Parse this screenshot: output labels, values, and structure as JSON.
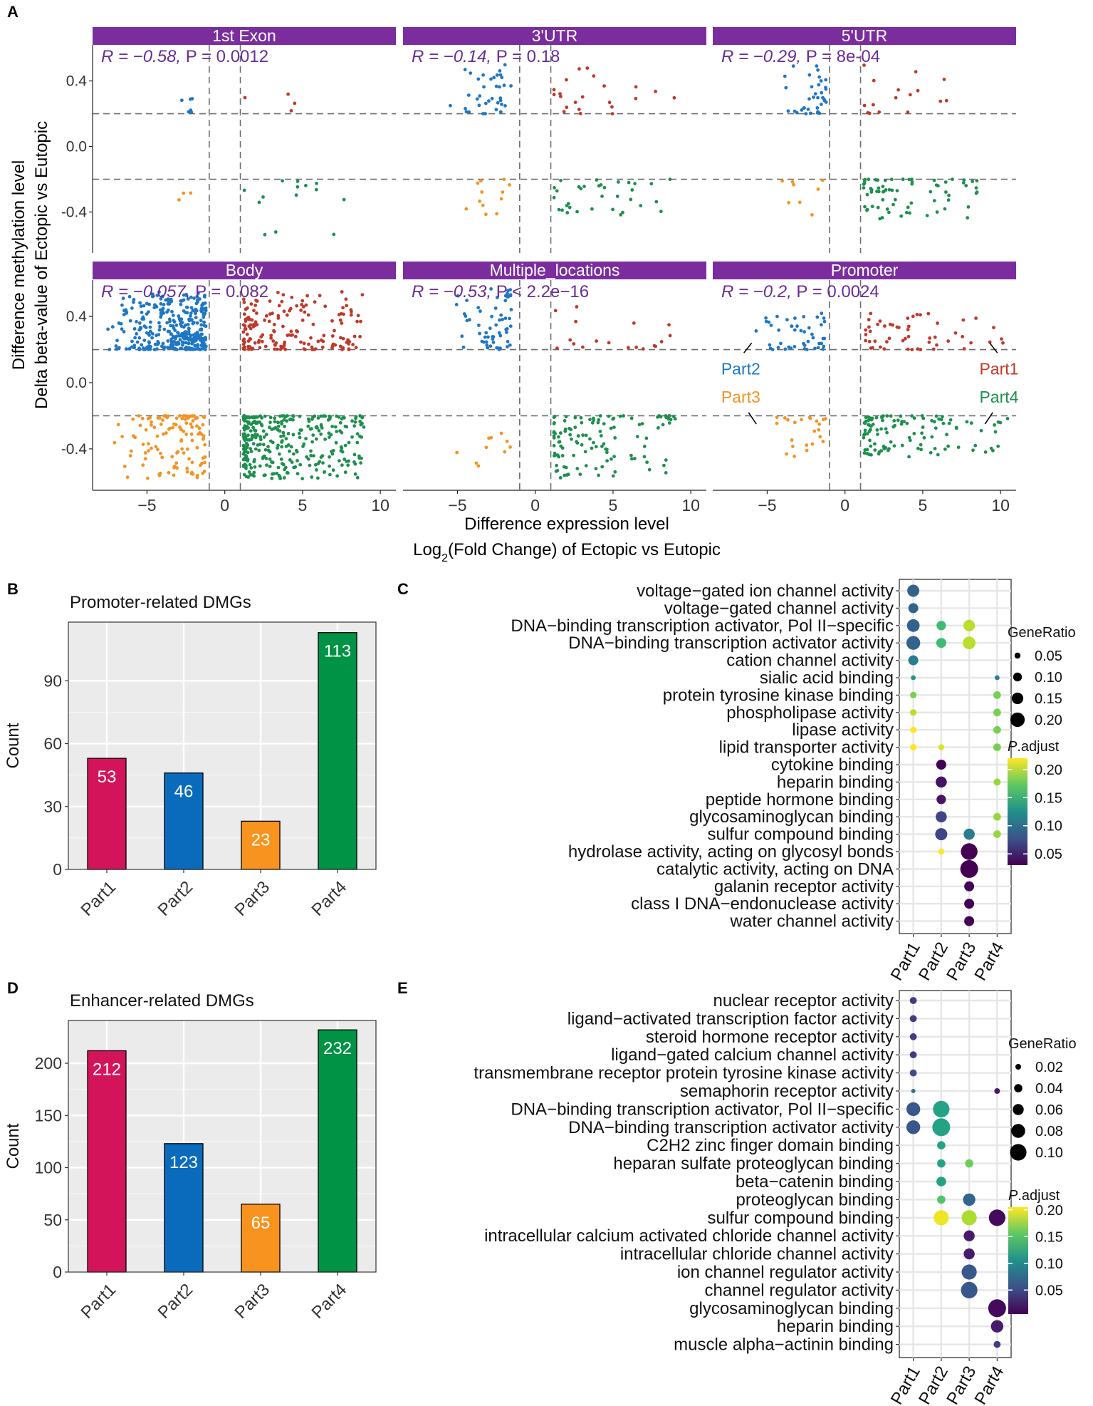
{
  "panel_labels": {
    "A": "A",
    "B": "B",
    "C": "C",
    "D": "D",
    "E": "E"
  },
  "colors": {
    "part1": "#c0392b",
    "part2": "#1f77c4",
    "part3": "#f39323",
    "part4": "#1e8f4e",
    "strip": "#7b2d9e",
    "panel_bg": "#ebebeb",
    "stat_text": "#6a2c96",
    "bar1": "#d4145a",
    "bar2": "#0a6bbd",
    "bar3": "#f7931e",
    "bar4": "#009245"
  },
  "panel_a": {
    "ylabel_line1": "Difference methylation level",
    "ylabel_line2": "Delta beta-value of Ectopic vs Eutopic",
    "xlabel_line1": "Difference expression level",
    "xlabel_pre": "Log",
    "xlabel_sub": "2",
    "xlabel_post": "(Fold Change) of Ectopic vs Eutopic",
    "yticks": [
      "0.4",
      "0.0",
      "-0.4"
    ],
    "xticks": [
      "−5",
      "0",
      "5",
      "10"
    ],
    "part_labels": {
      "part1": "Part1",
      "part2": "Part2",
      "part3": "Part3",
      "part4": "Part4"
    }
  },
  "panel_b": {
    "title": "Promoter-related DMGs",
    "ylabel": "Count",
    "yticks": [
      "0",
      "30",
      "60",
      "90"
    ]
  },
  "panel_c": {
    "size_legend_title": "GeneRatio",
    "color_legend_title_italic": "P",
    "color_legend_title_rest": ".adjust"
  },
  "panel_d": {
    "title": "Enhancer-related DMGs",
    "ylabel": "Count",
    "yticks": [
      "0",
      "50",
      "100",
      "150",
      "200"
    ]
  },
  "panel_e": {
    "size_legend_title": "GeneRatio",
    "color_legend_title_italic": "P",
    "color_legend_title_rest": ".adjust"
  },
  "chart_data": [
    {
      "id": "A",
      "type": "scatter",
      "facets": [
        {
          "name": "1st Exon",
          "stat_R": "R = −0.58, ",
          "stat_P": "P = 0.0012",
          "counts": [
            4,
            6,
            3,
            14
          ],
          "xrange": [
            [
              -3.5,
              -2
            ],
            [
              1,
              8
            ]
          ],
          "ymax": 0.32,
          "ymin": -0.62
        },
        {
          "name": "3'UTR",
          "stat_R": "R = −0.14, ",
          "stat_P": "P = 0.18",
          "counts": [
            22,
            36,
            12,
            34
          ],
          "xrange": [
            [
              -6,
              -1.5
            ],
            [
              1.2,
              9
            ]
          ],
          "ymax": 0.5,
          "ymin": -0.42
        },
        {
          "name": "5'UTR",
          "stat_R": "R = −0.29, ",
          "stat_P": "P = 8e-04",
          "counts": [
            16,
            36,
            8,
            70
          ],
          "xrange": [
            [
              -4.5,
              -1.2
            ],
            [
              1.2,
              9
            ]
          ],
          "ymax": 0.5,
          "ymin": -0.45
        },
        {
          "name": "Body",
          "stat_R": "R = −0.057, ",
          "stat_P": "P = 0.082",
          "counts": [
            170,
            350,
            120,
            330
          ],
          "xrange": [
            [
              -8,
              -1.2
            ],
            [
              1.2,
              9
            ]
          ],
          "ymax": 0.55,
          "ymin": -0.58
        },
        {
          "name": "Multiple_locations",
          "stat_R": "R = −0.53, ",
          "stat_P": "P < 2.2e−16",
          "counts": [
            18,
            60,
            10,
            120
          ],
          "xrange": [
            [
              -6,
              -1.5
            ],
            [
              1.2,
              9
            ]
          ],
          "ymax": 0.58,
          "ymin": -0.58
        },
        {
          "name": "Promoter",
          "stat_R": "R = −0.2, ",
          "stat_P": "P = 0.0024",
          "counts": [
            53,
            46,
            23,
            113
          ],
          "xrange": [
            [
              -6,
              -1.2
            ],
            [
              1.2,
              10.5
            ]
          ],
          "ymax": 0.42,
          "ymin": -0.45
        }
      ],
      "xlim": [
        -8.5,
        11
      ],
      "ylim": [
        -0.65,
        0.62
      ],
      "hlines": [
        0.2,
        -0.2
      ],
      "vlines": [
        -1,
        1
      ],
      "xticks": [
        -5,
        0,
        5,
        10
      ],
      "yticks": [
        0.4,
        0.0,
        -0.4
      ],
      "xlabel": "Difference expression level / Log2(Fold Change) of Ectopic vs Eutopic",
      "ylabel": "Difference methylation level / Delta beta-value of Ectopic vs Eutopic"
    },
    {
      "id": "B",
      "type": "bar",
      "title": "Promoter-related DMGs",
      "categories": [
        "Part1",
        "Part2",
        "Part3",
        "Part4"
      ],
      "values": [
        53,
        46,
        23,
        113
      ],
      "value_labels": [
        "53",
        "46",
        "23",
        "113"
      ],
      "ylim": [
        0,
        118
      ],
      "ylabel": "Count"
    },
    {
      "id": "C",
      "type": "scatter",
      "subtype": "dotplot",
      "terms": [
        "voltage−gated ion channel activity",
        "voltage−gated channel activity",
        "DNA−binding transcription activator, Pol II−specific",
        "DNA−binding transcription activator activity",
        "cation channel activity",
        "sialic acid binding",
        "protein tyrosine kinase binding",
        "phospholipase activity",
        "lipase activity",
        "lipid transporter activity",
        "cytokine binding",
        "heparin binding",
        "peptide hormone binding",
        "glycosaminoglycan binding",
        "sulfur compound binding",
        "hydrolase activity, acting on glycosyl bonds",
        "catalytic activity, acting on DNA",
        "galanin receptor activity",
        "class I DNA−endonuclease activity",
        "water channel activity"
      ],
      "groups": [
        "Part1",
        "Part2",
        "Part3",
        "Part4"
      ],
      "points": [
        {
          "term": 0,
          "group": 0,
          "ratio": 0.16,
          "padj": 0.09
        },
        {
          "term": 1,
          "group": 0,
          "ratio": 0.12,
          "padj": 0.09
        },
        {
          "term": 2,
          "group": 0,
          "ratio": 0.17,
          "padj": 0.09
        },
        {
          "term": 3,
          "group": 0,
          "ratio": 0.19,
          "padj": 0.09
        },
        {
          "term": 4,
          "group": 0,
          "ratio": 0.12,
          "padj": 0.11
        },
        {
          "term": 5,
          "group": 0,
          "ratio": 0.03,
          "padj": 0.13
        },
        {
          "term": 6,
          "group": 0,
          "ratio": 0.06,
          "padj": 0.18
        },
        {
          "term": 7,
          "group": 0,
          "ratio": 0.06,
          "padj": 0.2
        },
        {
          "term": 8,
          "group": 0,
          "ratio": 0.06,
          "padj": 0.22
        },
        {
          "term": 9,
          "group": 0,
          "ratio": 0.06,
          "padj": 0.22
        },
        {
          "term": 2,
          "group": 1,
          "ratio": 0.11,
          "padj": 0.16
        },
        {
          "term": 3,
          "group": 1,
          "ratio": 0.12,
          "padj": 0.16
        },
        {
          "term": 9,
          "group": 1,
          "ratio": 0.05,
          "padj": 0.21
        },
        {
          "term": 10,
          "group": 1,
          "ratio": 0.12,
          "padj": 0.03
        },
        {
          "term": 11,
          "group": 1,
          "ratio": 0.14,
          "padj": 0.04
        },
        {
          "term": 12,
          "group": 1,
          "ratio": 0.11,
          "padj": 0.04
        },
        {
          "term": 13,
          "group": 1,
          "ratio": 0.14,
          "padj": 0.07
        },
        {
          "term": 14,
          "group": 1,
          "ratio": 0.16,
          "padj": 0.07
        },
        {
          "term": 15,
          "group": 1,
          "ratio": 0.05,
          "padj": 0.22
        },
        {
          "term": 2,
          "group": 2,
          "ratio": 0.15,
          "padj": 0.2
        },
        {
          "term": 3,
          "group": 2,
          "ratio": 0.17,
          "padj": 0.2
        },
        {
          "term": 14,
          "group": 2,
          "ratio": 0.14,
          "padj": 0.11
        },
        {
          "term": 15,
          "group": 2,
          "ratio": 0.24,
          "padj": 0.02
        },
        {
          "term": 16,
          "group": 2,
          "ratio": 0.26,
          "padj": 0.02
        },
        {
          "term": 17,
          "group": 2,
          "ratio": 0.12,
          "padj": 0.02
        },
        {
          "term": 18,
          "group": 2,
          "ratio": 0.12,
          "padj": 0.02
        },
        {
          "term": 19,
          "group": 2,
          "ratio": 0.12,
          "padj": 0.03
        },
        {
          "term": 5,
          "group": 3,
          "ratio": 0.03,
          "padj": 0.11
        },
        {
          "term": 6,
          "group": 3,
          "ratio": 0.08,
          "padj": 0.18
        },
        {
          "term": 7,
          "group": 3,
          "ratio": 0.08,
          "padj": 0.18
        },
        {
          "term": 8,
          "group": 3,
          "ratio": 0.08,
          "padj": 0.18
        },
        {
          "term": 9,
          "group": 3,
          "ratio": 0.08,
          "padj": 0.18
        },
        {
          "term": 11,
          "group": 3,
          "ratio": 0.07,
          "padj": 0.19
        },
        {
          "term": 13,
          "group": 3,
          "ratio": 0.08,
          "padj": 0.19
        },
        {
          "term": 14,
          "group": 3,
          "ratio": 0.08,
          "padj": 0.19
        }
      ],
      "size_legend": [
        0.05,
        0.1,
        0.15,
        0.2
      ],
      "size_legend_labels": [
        "0.05",
        "0.10",
        "0.15",
        "0.20"
      ],
      "color_legend_ticks": [
        "0.20",
        "0.15",
        "0.10",
        "0.05"
      ],
      "color_legend_values": [
        0.2,
        0.15,
        0.1,
        0.05
      ],
      "color_range": [
        0.03,
        0.22
      ],
      "ratio_range": [
        0.02,
        0.26
      ]
    },
    {
      "id": "D",
      "type": "bar",
      "title": "Enhancer-related DMGs",
      "categories": [
        "Part1",
        "Part2",
        "Part3",
        "Part4"
      ],
      "values": [
        212,
        123,
        65,
        232
      ],
      "value_labels": [
        "212",
        "123",
        "65",
        "232"
      ],
      "ylim": [
        0,
        241
      ],
      "ylabel": "Count"
    },
    {
      "id": "E",
      "type": "scatter",
      "subtype": "dotplot",
      "terms": [
        "nuclear receptor activity",
        "ligand−activated transcription factor activity",
        "steroid hormone receptor activity",
        "ligand−gated calcium channel activity",
        "transmembrane receptor protein tyrosine kinase activity",
        "semaphorin receptor activity",
        "DNA−binding transcription activator, Pol II−specific",
        "DNA−binding transcription activator activity",
        "C2H2 zinc finger domain binding",
        "heparan sulfate proteoglycan binding",
        "beta−catenin binding",
        "proteoglycan binding",
        "sulfur compound binding",
        "intracellular calcium activated chloride channel activity",
        "intracellular chloride channel activity",
        "ion channel regulator activity",
        "channel regulator activity",
        "glycosaminoglycan binding",
        "heparin binding",
        "muscle alpha−actinin binding"
      ],
      "groups": [
        "Part1",
        "Part2",
        "Part3",
        "Part4"
      ],
      "points": [
        {
          "term": 0,
          "group": 0,
          "ratio": 0.03,
          "padj": 0.04
        },
        {
          "term": 1,
          "group": 0,
          "ratio": 0.03,
          "padj": 0.04
        },
        {
          "term": 2,
          "group": 0,
          "ratio": 0.03,
          "padj": 0.04
        },
        {
          "term": 3,
          "group": 0,
          "ratio": 0.03,
          "padj": 0.04
        },
        {
          "term": 4,
          "group": 0,
          "ratio": 0.03,
          "padj": 0.05
        },
        {
          "term": 5,
          "group": 0,
          "ratio": 0.01,
          "padj": 0.08
        },
        {
          "term": 6,
          "group": 0,
          "ratio": 0.08,
          "padj": 0.06
        },
        {
          "term": 7,
          "group": 0,
          "ratio": 0.08,
          "padj": 0.06
        },
        {
          "term": 6,
          "group": 1,
          "ratio": 0.1,
          "padj": 0.12
        },
        {
          "term": 7,
          "group": 1,
          "ratio": 0.11,
          "padj": 0.12
        },
        {
          "term": 8,
          "group": 1,
          "ratio": 0.04,
          "padj": 0.12
        },
        {
          "term": 9,
          "group": 1,
          "ratio": 0.04,
          "padj": 0.12
        },
        {
          "term": 10,
          "group": 1,
          "ratio": 0.05,
          "padj": 0.12
        },
        {
          "term": 11,
          "group": 1,
          "ratio": 0.04,
          "padj": 0.15
        },
        {
          "term": 12,
          "group": 1,
          "ratio": 0.09,
          "padj": 0.2
        },
        {
          "term": 9,
          "group": 2,
          "ratio": 0.04,
          "padj": 0.16
        },
        {
          "term": 11,
          "group": 2,
          "ratio": 0.07,
          "padj": 0.07
        },
        {
          "term": 12,
          "group": 2,
          "ratio": 0.09,
          "padj": 0.18
        },
        {
          "term": 13,
          "group": 2,
          "ratio": 0.06,
          "padj": 0.02
        },
        {
          "term": 14,
          "group": 2,
          "ratio": 0.06,
          "padj": 0.02
        },
        {
          "term": 15,
          "group": 2,
          "ratio": 0.09,
          "padj": 0.06
        },
        {
          "term": 16,
          "group": 2,
          "ratio": 0.1,
          "padj": 0.06
        },
        {
          "term": 5,
          "group": 3,
          "ratio": 0.02,
          "padj": 0.02
        },
        {
          "term": 12,
          "group": 3,
          "ratio": 0.1,
          "padj": 0.01
        },
        {
          "term": 17,
          "group": 3,
          "ratio": 0.11,
          "padj": 0.01
        },
        {
          "term": 18,
          "group": 3,
          "ratio": 0.07,
          "padj": 0.02
        },
        {
          "term": 19,
          "group": 3,
          "ratio": 0.03,
          "padj": 0.04
        }
      ],
      "size_legend": [
        0.02,
        0.04,
        0.06,
        0.08,
        0.1
      ],
      "size_legend_labels": [
        "0.02",
        "0.04",
        "0.06",
        "0.08",
        "0.10"
      ],
      "color_legend_ticks": [
        "0.20",
        "0.15",
        "0.10",
        "0.05"
      ],
      "color_legend_values": [
        0.2,
        0.15,
        0.1,
        0.05
      ],
      "color_range": [
        0.005,
        0.205
      ],
      "ratio_range": [
        0.01,
        0.11
      ]
    }
  ]
}
